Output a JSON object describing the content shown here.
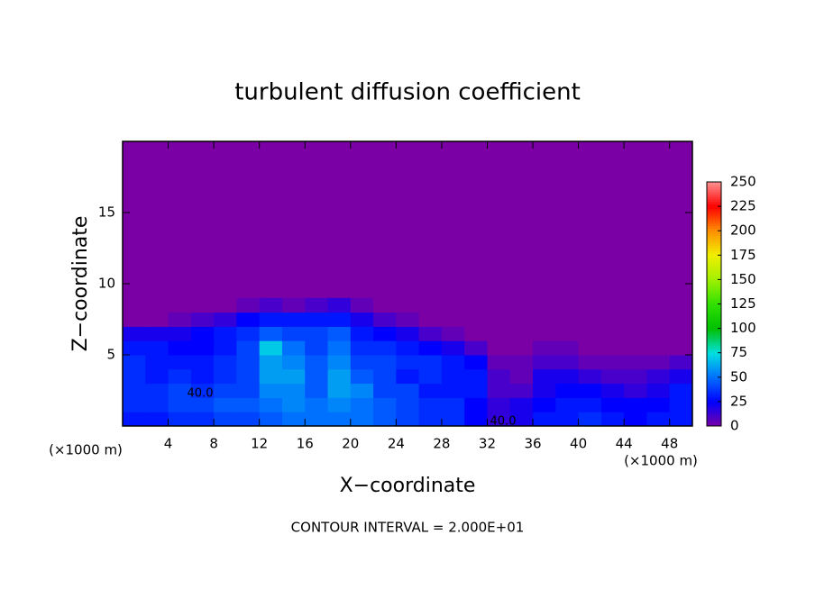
{
  "chart_data": {
    "type": "heatmap",
    "title": "turbulent diffusion coefficient",
    "x_label": "X−coordinate",
    "y_label": "Z−coordinate",
    "x_unit_label": "(×1000 m)",
    "note": "CONTOUR INTERVAL = 2.000E+01",
    "annotations": [
      "40.0",
      "40.0"
    ],
    "xlim": [
      0,
      50
    ],
    "xticks": [
      4,
      8,
      12,
      16,
      20,
      24,
      28,
      32,
      36,
      40,
      44,
      48
    ],
    "ylim": [
      0,
      20
    ],
    "yticks": [
      5,
      10,
      15
    ],
    "x": [
      1,
      3,
      5,
      7,
      9,
      11,
      13,
      15,
      17,
      19,
      21,
      23,
      25,
      27,
      29,
      31,
      33,
      35,
      37,
      39,
      41,
      43,
      45,
      47,
      49
    ],
    "y": [
      0.5,
      1.5,
      2.5,
      3.5,
      4.5,
      5.5,
      6.5,
      7.5,
      8.5
    ],
    "z": [
      [
        30,
        30,
        35,
        35,
        40,
        40,
        45,
        50,
        50,
        50,
        50,
        45,
        40,
        35,
        35,
        25,
        15,
        20,
        30,
        30,
        35,
        30,
        25,
        30,
        30
      ],
      [
        35,
        35,
        40,
        40,
        45,
        45,
        50,
        55,
        50,
        55,
        50,
        45,
        40,
        35,
        35,
        25,
        15,
        20,
        25,
        30,
        30,
        25,
        25,
        25,
        30
      ],
      [
        35,
        35,
        40,
        35,
        40,
        40,
        55,
        55,
        45,
        60,
        55,
        40,
        40,
        30,
        30,
        30,
        10,
        10,
        20,
        25,
        25,
        20,
        15,
        20,
        30
      ],
      [
        35,
        30,
        35,
        30,
        35,
        40,
        60,
        60,
        45,
        60,
        45,
        40,
        30,
        35,
        30,
        30,
        10,
        5,
        20,
        20,
        15,
        10,
        10,
        15,
        20
      ],
      [
        35,
        30,
        30,
        30,
        35,
        40,
        60,
        55,
        45,
        55,
        40,
        40,
        35,
        35,
        30,
        25,
        5,
        5,
        10,
        10,
        5,
        5,
        5,
        5,
        10
      ],
      [
        30,
        30,
        25,
        25,
        30,
        40,
        70,
        50,
        40,
        50,
        35,
        35,
        30,
        25,
        20,
        10,
        0,
        0,
        5,
        5,
        0,
        0,
        0,
        0,
        0
      ],
      [
        20,
        20,
        20,
        25,
        30,
        35,
        45,
        40,
        40,
        45,
        30,
        25,
        20,
        10,
        5,
        0,
        0,
        0,
        0,
        0,
        0,
        0,
        0,
        0,
        0
      ],
      [
        0,
        0,
        5,
        10,
        15,
        25,
        30,
        30,
        30,
        30,
        20,
        10,
        5,
        0,
        0,
        0,
        0,
        0,
        0,
        0,
        0,
        0,
        0,
        0,
        0
      ],
      [
        0,
        0,
        0,
        0,
        0,
        5,
        10,
        5,
        10,
        15,
        5,
        0,
        0,
        0,
        0,
        0,
        0,
        0,
        0,
        0,
        0,
        0,
        0,
        0,
        0
      ]
    ],
    "colorbar": {
      "lim": [
        0,
        250
      ],
      "ticks": [
        0,
        25,
        50,
        75,
        100,
        125,
        150,
        175,
        200,
        225,
        250
      ],
      "colors": [
        "#7a00a6",
        "#0000ff",
        "#0070ff",
        "#00e0e0",
        "#00c000",
        "#30e000",
        "#a0f000",
        "#f0f000",
        "#ff9000",
        "#ff0000",
        "#ff9090"
      ]
    }
  }
}
